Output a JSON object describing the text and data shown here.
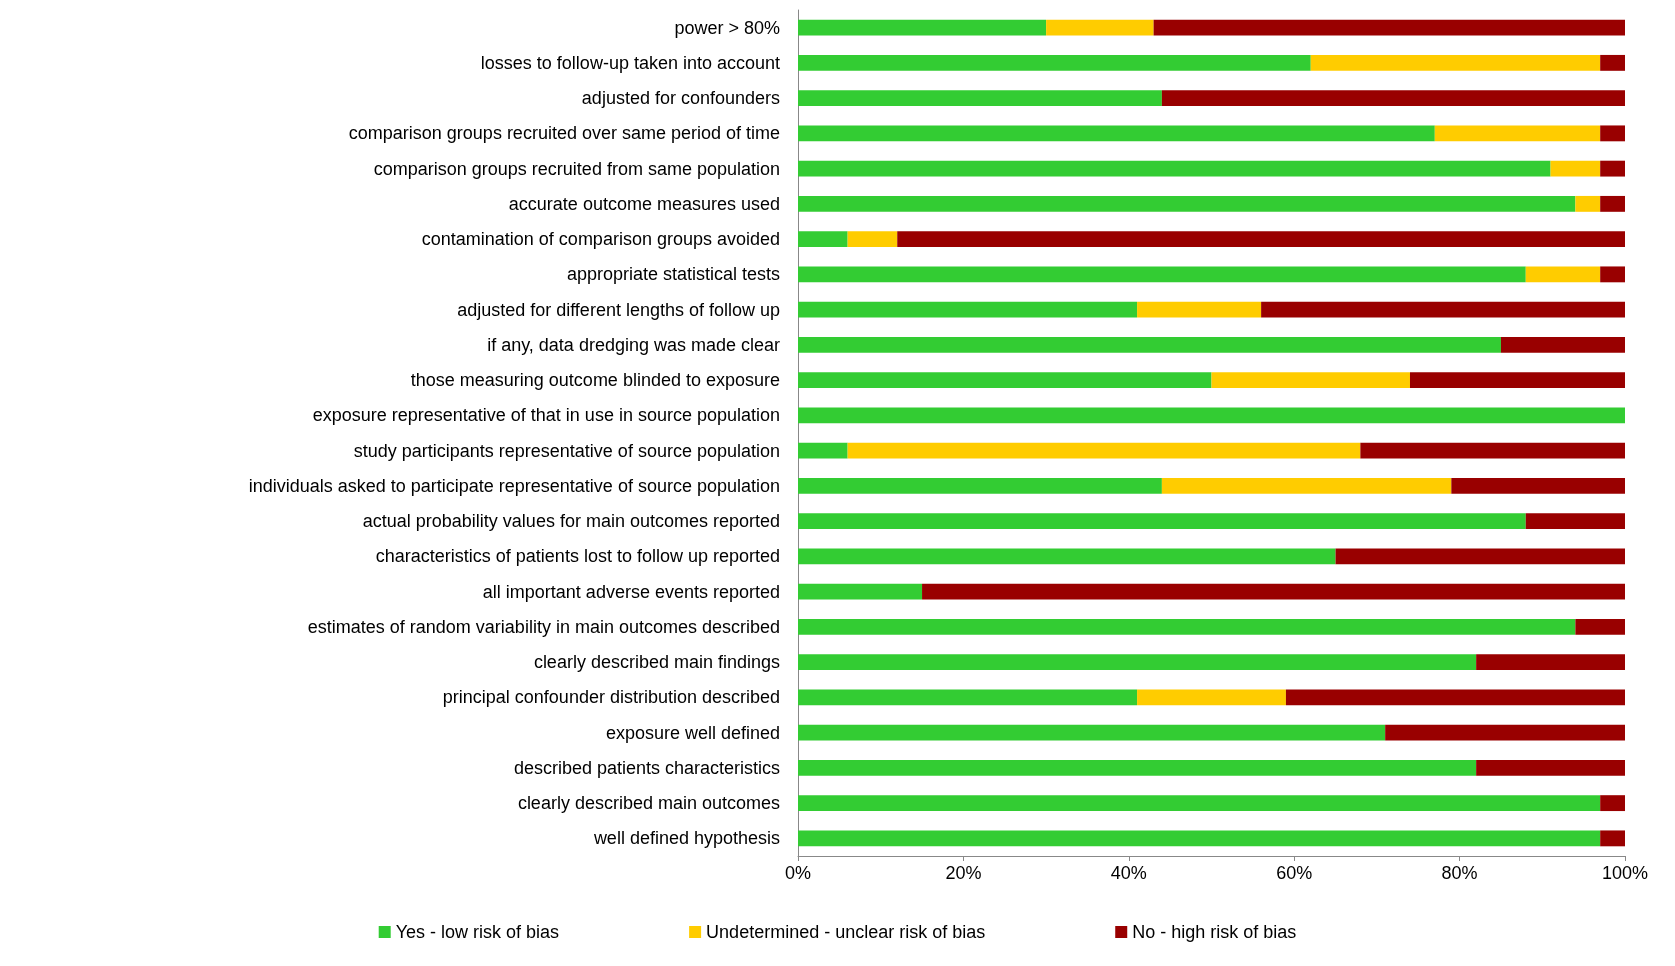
{
  "chart_data": {
    "type": "bar",
    "orientation": "horizontal",
    "stacked": true,
    "categories": [
      "power > 80%",
      "losses to follow-up taken into account",
      "adjusted for confounders",
      "comparison groups recruited over same period of time",
      "comparison groups recruited from same population",
      "accurate outcome measures used",
      "contamination of comparison groups avoided",
      "appropriate statistical tests",
      "adjusted for different lengths of follow up",
      "if any, data dredging was made clear",
      "those measuring outcome blinded to exposure",
      "exposure representative of that in use in source population",
      "study participants representative of source population",
      "individuals asked to participate representative of source population",
      "actual probability values for main outcomes reported",
      "characteristics of patients lost to follow up reported",
      "all important adverse events reported",
      "estimates of random variability in main outcomes described",
      "clearly described main findings",
      "principal confounder distribution described",
      "exposure well defined",
      "described patients characteristics",
      "clearly described main outcomes",
      "well defined hypothesis"
    ],
    "series": [
      {
        "name": "Yes - low risk of bias",
        "color": "#33cc33",
        "values": [
          30,
          62,
          44,
          77,
          91,
          94,
          6,
          88,
          41,
          85,
          50,
          100,
          6,
          44,
          88,
          65,
          15,
          94,
          82,
          41,
          71,
          82,
          97,
          97
        ]
      },
      {
        "name": "Undetermined - unclear risk of bias",
        "color": "#ffcc00",
        "values": [
          13,
          35,
          0,
          20,
          6,
          3,
          6,
          9,
          15,
          0,
          24,
          0,
          62,
          35,
          0,
          0,
          0,
          0,
          0,
          18,
          0,
          0,
          0,
          0
        ]
      },
      {
        "name": "No - high risk of bias",
        "color": "#990000",
        "values": [
          57,
          3,
          56,
          3,
          3,
          3,
          88,
          3,
          44,
          15,
          26,
          0,
          32,
          21,
          12,
          35,
          85,
          6,
          18,
          41,
          29,
          18,
          3,
          3
        ]
      }
    ],
    "xlim": [
      0,
      100
    ],
    "xticks": [
      {
        "value": 0,
        "label": "0%"
      },
      {
        "value": 20,
        "label": "20%"
      },
      {
        "value": 40,
        "label": "40%"
      },
      {
        "value": 60,
        "label": "60%"
      },
      {
        "value": 80,
        "label": "80%"
      },
      {
        "value": 100,
        "label": "100%"
      }
    ],
    "grid": false,
    "legend": "bottom"
  }
}
